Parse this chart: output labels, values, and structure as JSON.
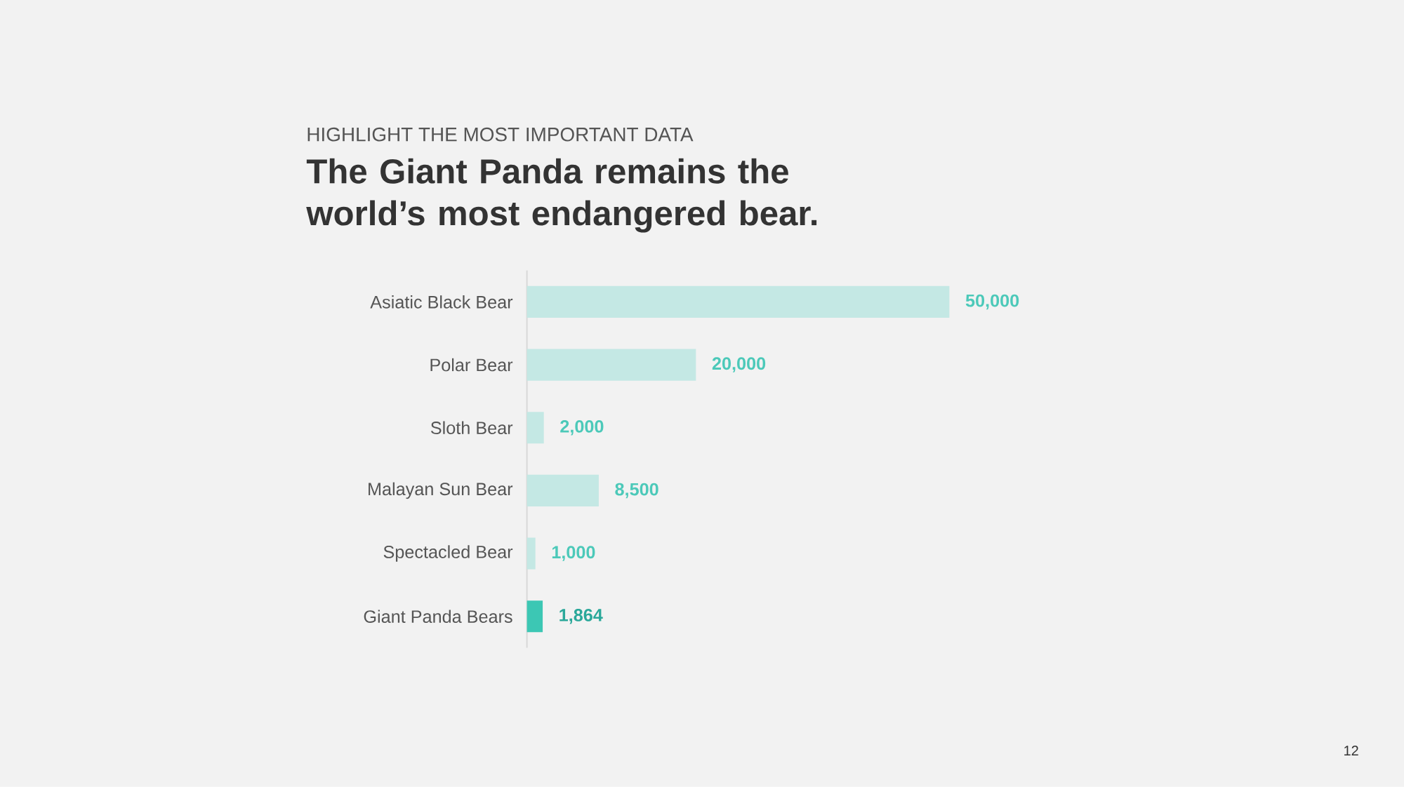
{
  "chart_data": {
    "type": "bar",
    "orientation": "horizontal",
    "subtitle": "HIGHLIGHT THE MOST IMPORTANT DATA",
    "title": "The Giant Panda remains the world’s most endangered bear.",
    "categories": [
      "Asiatic Black Bear",
      "Polar Bear",
      "Sloth Bear",
      "Malayan Sun Bear",
      "Spectacled Bear",
      "Giant Panda Bears"
    ],
    "values": [
      50000,
      20000,
      2000,
      8500,
      1000,
      1864
    ],
    "value_labels": [
      "50,000",
      "20,000",
      "2,000",
      "8,500",
      "1,000",
      "1,864"
    ],
    "colors": [
      "#c4e8e4",
      "#c4e8e4",
      "#c4e8e4",
      "#c4e8e4",
      "#c4e8e4",
      "#3cc7b4"
    ],
    "xlim": [
      0,
      50000
    ],
    "tick_labels": "y",
    "annotations": [
      "12"
    ]
  }
}
